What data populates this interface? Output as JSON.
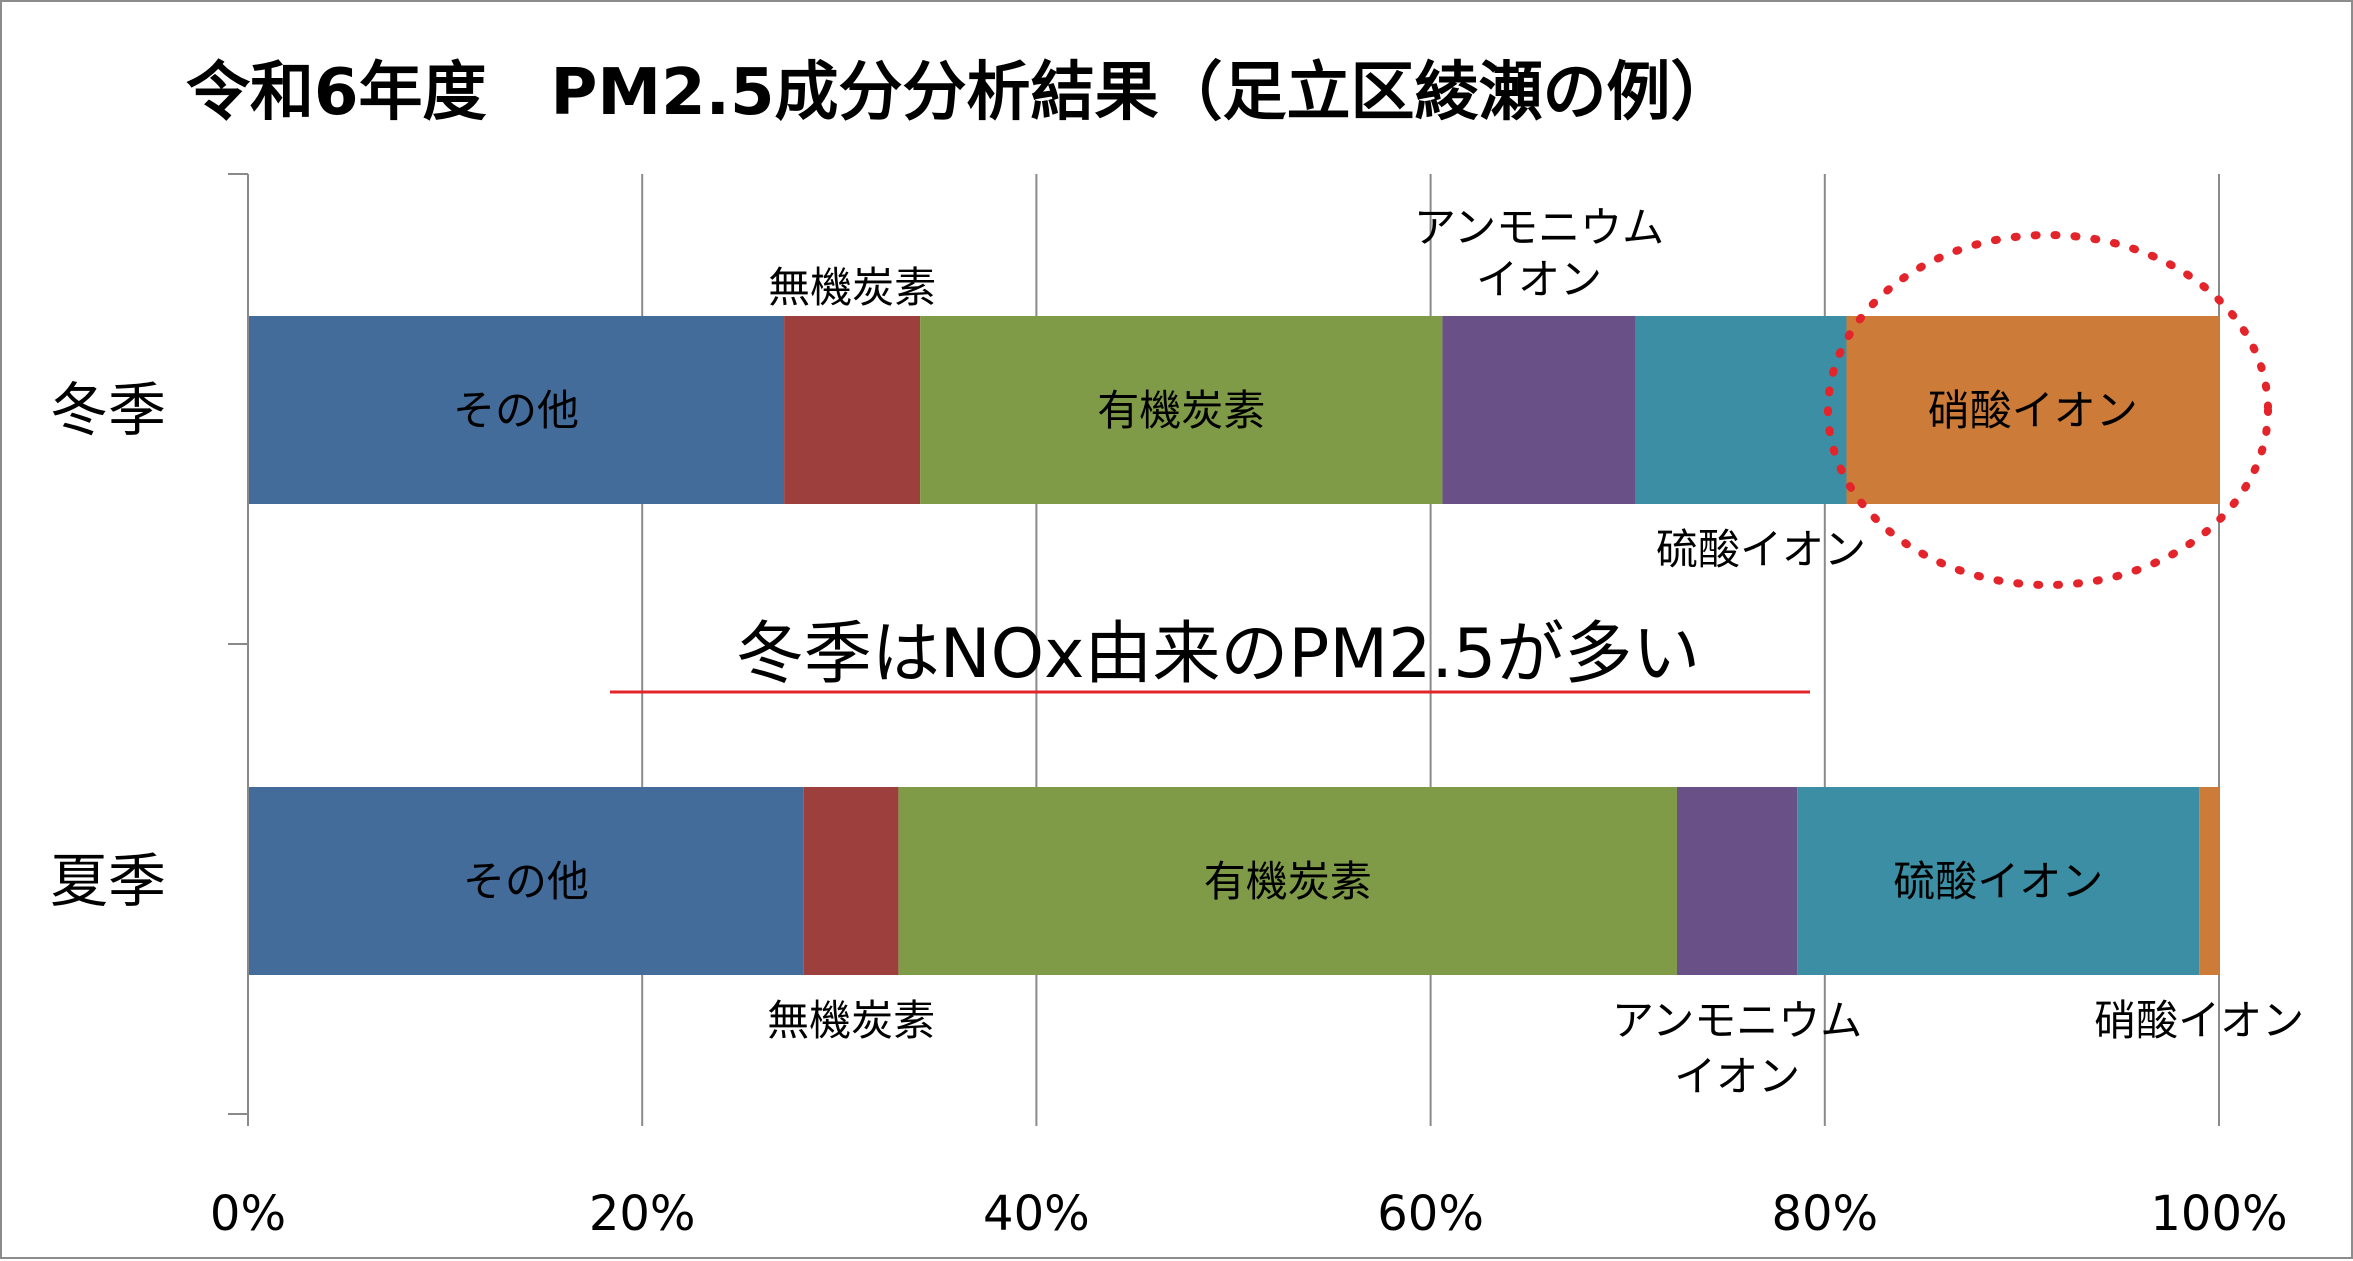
{
  "chart_data": {
    "type": "bar",
    "orientation": "horizontal",
    "stacked": "percent",
    "title": "令和6年度　PM2.5成分分析結果（足立区綾瀬の例）",
    "categories": [
      "冬季",
      "夏季"
    ],
    "series": [
      {
        "name": "その他",
        "color": "#436c9b",
        "values": [
          27.2,
          28.2
        ]
      },
      {
        "name": "無機炭素",
        "color": "#9c3f3d",
        "values": [
          6.9,
          4.8
        ]
      },
      {
        "name": "有機炭素",
        "color": "#809b48",
        "values": [
          26.5,
          39.5
        ]
      },
      {
        "name": "アンモニウムイオン",
        "color": "#695187",
        "values": [
          9.8,
          6.1
        ]
      },
      {
        "name": "硫酸イオン",
        "color": "#3b8ea3",
        "values": [
          10.7,
          20.4
        ]
      },
      {
        "name": "硝酸イオン",
        "color": "#cd7b38",
        "values": [
          18.9,
          1.0
        ]
      }
    ],
    "xlim": [
      0,
      100
    ],
    "x_ticks": [
      "0%",
      "20%",
      "40%",
      "60%",
      "80%",
      "100%"
    ],
    "grid": true,
    "legend": "none",
    "segment_labels": [
      {
        "text": "その他",
        "category": 0,
        "series": 0,
        "placement": "inside"
      },
      {
        "text": "無機炭素",
        "category": 0,
        "series": 1,
        "placement": "above"
      },
      {
        "text": "有機炭素",
        "category": 0,
        "series": 2,
        "placement": "inside"
      },
      {
        "text": "アンモニウム",
        "text2": "イオン",
        "category": 0,
        "series": 3,
        "placement": "above"
      },
      {
        "text": "硫酸イオン",
        "category": 0,
        "series": 4,
        "placement": "below"
      },
      {
        "text": "硝酸イオン",
        "category": 0,
        "series": 5,
        "placement": "inside"
      },
      {
        "text": "その他",
        "category": 1,
        "series": 0,
        "placement": "inside"
      },
      {
        "text": "無機炭素",
        "category": 1,
        "series": 1,
        "placement": "below"
      },
      {
        "text": "有機炭素",
        "category": 1,
        "series": 2,
        "placement": "inside"
      },
      {
        "text": "アンモニウム",
        "text2": "イオン",
        "category": 1,
        "series": 3,
        "placement": "below"
      },
      {
        "text": "硫酸イオン",
        "category": 1,
        "series": 4,
        "placement": "inside"
      },
      {
        "text": "硝酸イオン",
        "category": 1,
        "series": 5,
        "placement": "below"
      }
    ],
    "annotation": {
      "text": "冬季はNOx由来のPM2.5が多い",
      "underline_color": "#e3242b",
      "highlight": {
        "category": 0,
        "series": 5,
        "shape": "dotted-ellipse",
        "color": "#e3242b"
      }
    }
  }
}
